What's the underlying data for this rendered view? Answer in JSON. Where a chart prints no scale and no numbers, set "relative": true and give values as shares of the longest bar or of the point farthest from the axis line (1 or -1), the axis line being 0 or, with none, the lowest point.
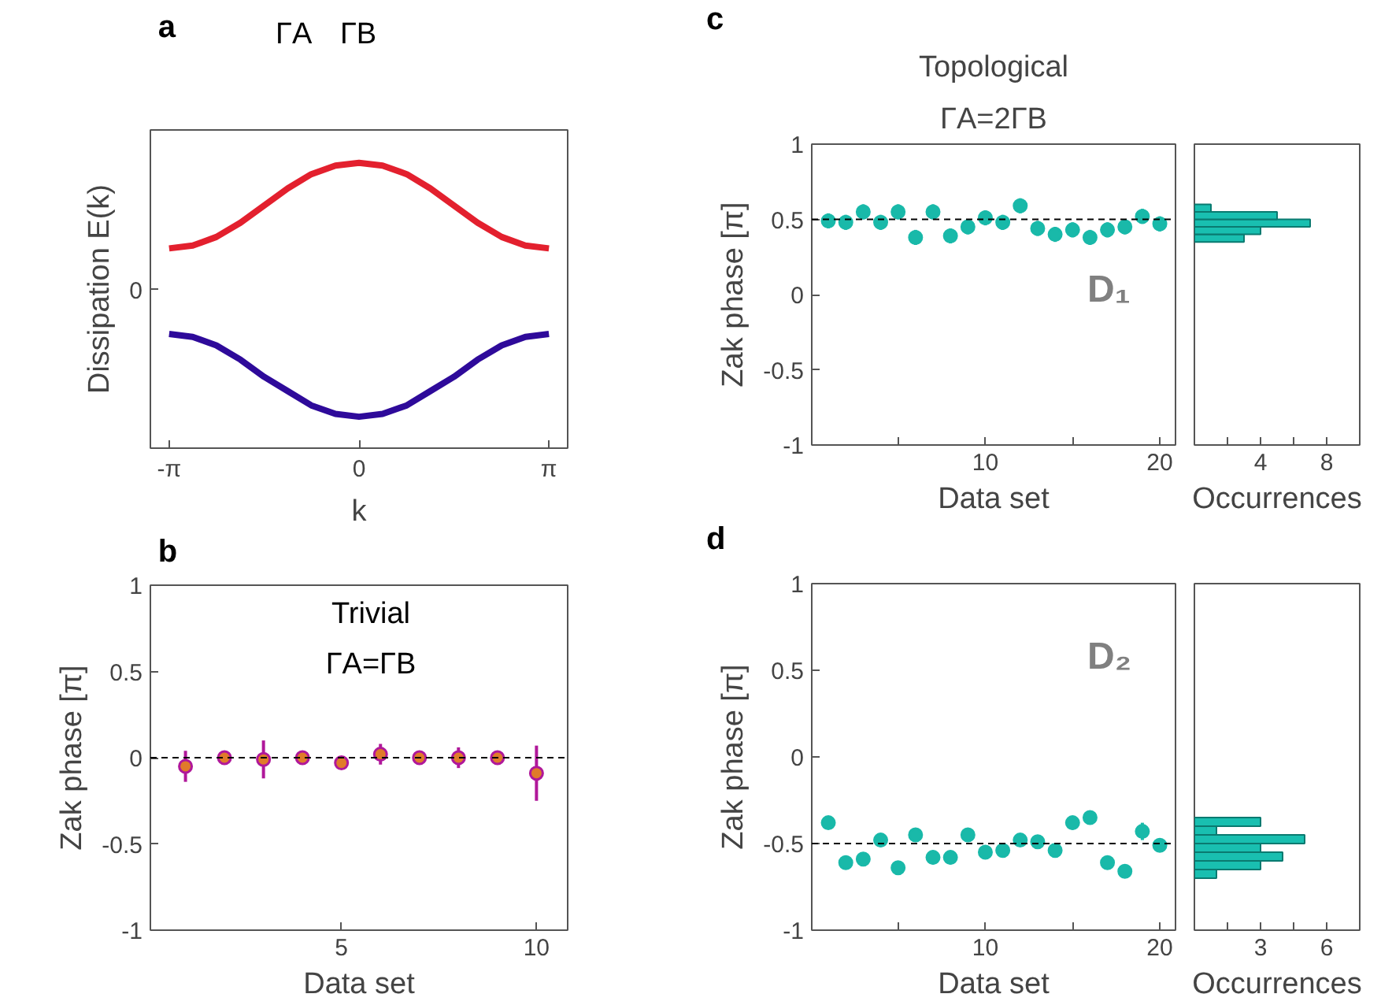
{
  "chart_data": [
    {
      "type": "line",
      "relative": true,
      "xlabel": "k",
      "ylabel": "Dissipation E(k)",
      "x": [
        -3.14,
        -2.75,
        -2.36,
        -1.96,
        -1.57,
        -1.18,
        -0.79,
        -0.39,
        0,
        0.39,
        0.79,
        1.18,
        1.57,
        1.96,
        2.36,
        2.75,
        3.14
      ],
      "series": [
        {
          "color": "#e3202e",
          "values": [
            0.7,
            0.71,
            0.74,
            0.79,
            0.85,
            0.91,
            0.96,
            0.99,
            1,
            0.99,
            0.96,
            0.91,
            0.85,
            0.79,
            0.74,
            0.71,
            0.7
          ]
        },
        {
          "color": "#2e0a9a",
          "values": [
            0.4,
            0.39,
            0.36,
            0.31,
            0.25,
            0.2,
            0.15,
            0.12,
            0.11,
            0.12,
            0.15,
            0.2,
            0.25,
            0.31,
            0.36,
            0.39,
            0.4
          ]
        }
      ],
      "xlim": [
        -3.45,
        3.45
      ],
      "xticks": [
        {
          "value": -3.14,
          "label": "-π"
        },
        0,
        {
          "value": 3.14,
          "label": "π"
        }
      ],
      "grid": false,
      "line_style": "solid",
      "marker": "none",
      "annotations": [
        "a",
        "ΓA",
        "ΓB",
        "0"
      ]
    },
    {
      "type": "scatter",
      "title": "Trivial",
      "subtitle": "ΓA=ΓB",
      "xlabel": "Data set",
      "ylabel": "Zak phase [π]",
      "x": [
        1,
        2,
        3,
        4,
        5,
        6,
        7,
        8,
        9,
        10
      ],
      "series": [
        {
          "color": "#e07b2a",
          "values": [
            -0.05,
            0,
            -0.01,
            0,
            -0.03,
            0.02,
            0,
            0,
            0,
            -0.09
          ],
          "errors": [
            0.09,
            0.02,
            0.11,
            0.02,
            0.02,
            0.06,
            0.02,
            0.06,
            0.03,
            0.16
          ]
        }
      ],
      "xlim": [
        0.1,
        10.8
      ],
      "ylim": [
        -1,
        1
      ],
      "xticks": [
        5,
        10
      ],
      "yticks": [
        -1,
        -0.5,
        0,
        0.5,
        1
      ],
      "grid": false,
      "marker": "circle",
      "ref_lines": [
        {
          "axis": "y",
          "value": 0,
          "line_style": "dashed",
          "color": "#000000"
        }
      ],
      "annotations": [
        "b"
      ]
    },
    {
      "type": "scatter",
      "title": "Topological",
      "subtitle": "ΓA=2ΓB",
      "xlabel": "Data set",
      "ylabel": "Zak phase [π]",
      "x": [
        1,
        2,
        3,
        4,
        5,
        6,
        7,
        8,
        9,
        10,
        11,
        12,
        13,
        14,
        15,
        16,
        17,
        18,
        19,
        20
      ],
      "series": [
        {
          "color": "#19b9a9",
          "values": [
            0.49,
            0.48,
            0.55,
            0.48,
            0.55,
            0.38,
            0.55,
            0.39,
            0.45,
            0.51,
            0.48,
            0.59,
            0.44,
            0.4,
            0.43,
            0.38,
            0.43,
            0.45,
            0.52,
            0.47
          ],
          "errors": [
            0.05,
            0.05,
            0.05,
            0.05,
            0.05,
            0.05,
            0.05,
            0.05,
            0.05,
            0.05,
            0.05,
            0.05,
            0.05,
            0.05,
            0.05,
            0.05,
            0.05,
            0.05,
            0.05,
            0.05
          ]
        }
      ],
      "xlim": [
        0.05,
        20.9
      ],
      "ylim": [
        -1,
        1
      ],
      "xticks": [
        {
          "value": 5,
          "label": null
        },
        10,
        {
          "value": 15,
          "label": null
        },
        20
      ],
      "yticks": [
        -1,
        -0.5,
        0,
        0.5,
        1
      ],
      "grid": false,
      "marker": "circle",
      "ref_lines": [
        {
          "axis": "y",
          "value": 0.5,
          "line_style": "dashed",
          "color": "#000000"
        }
      ],
      "annotations": [
        "c",
        "D₁"
      ]
    },
    {
      "type": "histogram",
      "orientation": "horizontal",
      "xlabel": "Occurrences",
      "bins": [
        0.35,
        0.4,
        0.45,
        0.5,
        0.55,
        0.6
      ],
      "values": [
        3,
        4,
        7,
        5,
        1
      ],
      "color": "#19bfb0",
      "xlim": [
        0,
        10
      ],
      "ylim": [
        -1,
        1
      ],
      "xticks": [
        {
          "value": 2,
          "label": null
        },
        4,
        {
          "value": 6,
          "label": null
        },
        8
      ],
      "tick_labels": "x",
      "grid": false
    },
    {
      "type": "scatter",
      "xlabel": "Data set",
      "ylabel": "Zak phase [π]",
      "x": [
        1,
        2,
        3,
        4,
        5,
        6,
        7,
        8,
        9,
        10,
        11,
        12,
        13,
        14,
        15,
        16,
        17,
        18,
        19,
        20
      ],
      "series": [
        {
          "color": "#19b9a9",
          "values": [
            -0.38,
            -0.61,
            -0.59,
            -0.48,
            -0.64,
            -0.45,
            -0.58,
            -0.58,
            -0.45,
            -0.55,
            -0.54,
            -0.48,
            -0.49,
            -0.54,
            -0.38,
            -0.35,
            -0.61,
            -0.66,
            -0.43,
            -0.51
          ],
          "errors": [
            0.03,
            0.04,
            0.04,
            0.04,
            0.04,
            0.04,
            0.04,
            0.04,
            0.04,
            0.04,
            0.04,
            0.03,
            0.03,
            0.04,
            0.04,
            0.03,
            0.04,
            0.04,
            0.05,
            0.04
          ]
        }
      ],
      "xlim": [
        0.05,
        20.9
      ],
      "ylim": [
        -1,
        1
      ],
      "xticks": [
        {
          "value": 5,
          "label": null
        },
        10,
        {
          "value": 15,
          "label": null
        },
        20
      ],
      "yticks": [
        -1,
        -0.5,
        0,
        0.5,
        1
      ],
      "grid": false,
      "marker": "circle",
      "ref_lines": [
        {
          "axis": "y",
          "value": -0.5,
          "line_style": "dashed",
          "color": "#000000"
        }
      ],
      "annotations": [
        "d",
        "D₂"
      ]
    },
    {
      "type": "histogram",
      "orientation": "horizontal",
      "xlabel": "Occurrences",
      "bins": [
        -0.7,
        -0.65,
        -0.6,
        -0.55,
        -0.5,
        -0.45,
        -0.4,
        -0.35
      ],
      "values": [
        1,
        3,
        4,
        3,
        5,
        1,
        3
      ],
      "color": "#19bfb0",
      "xlim": [
        0,
        7.5
      ],
      "xticks": [
        {
          "value": 1.5,
          "label": null
        },
        3,
        {
          "value": 4.5,
          "label": null
        },
        6
      ],
      "ylim": [
        -1,
        1
      ],
      "tick_labels": "x",
      "grid": false
    }
  ]
}
